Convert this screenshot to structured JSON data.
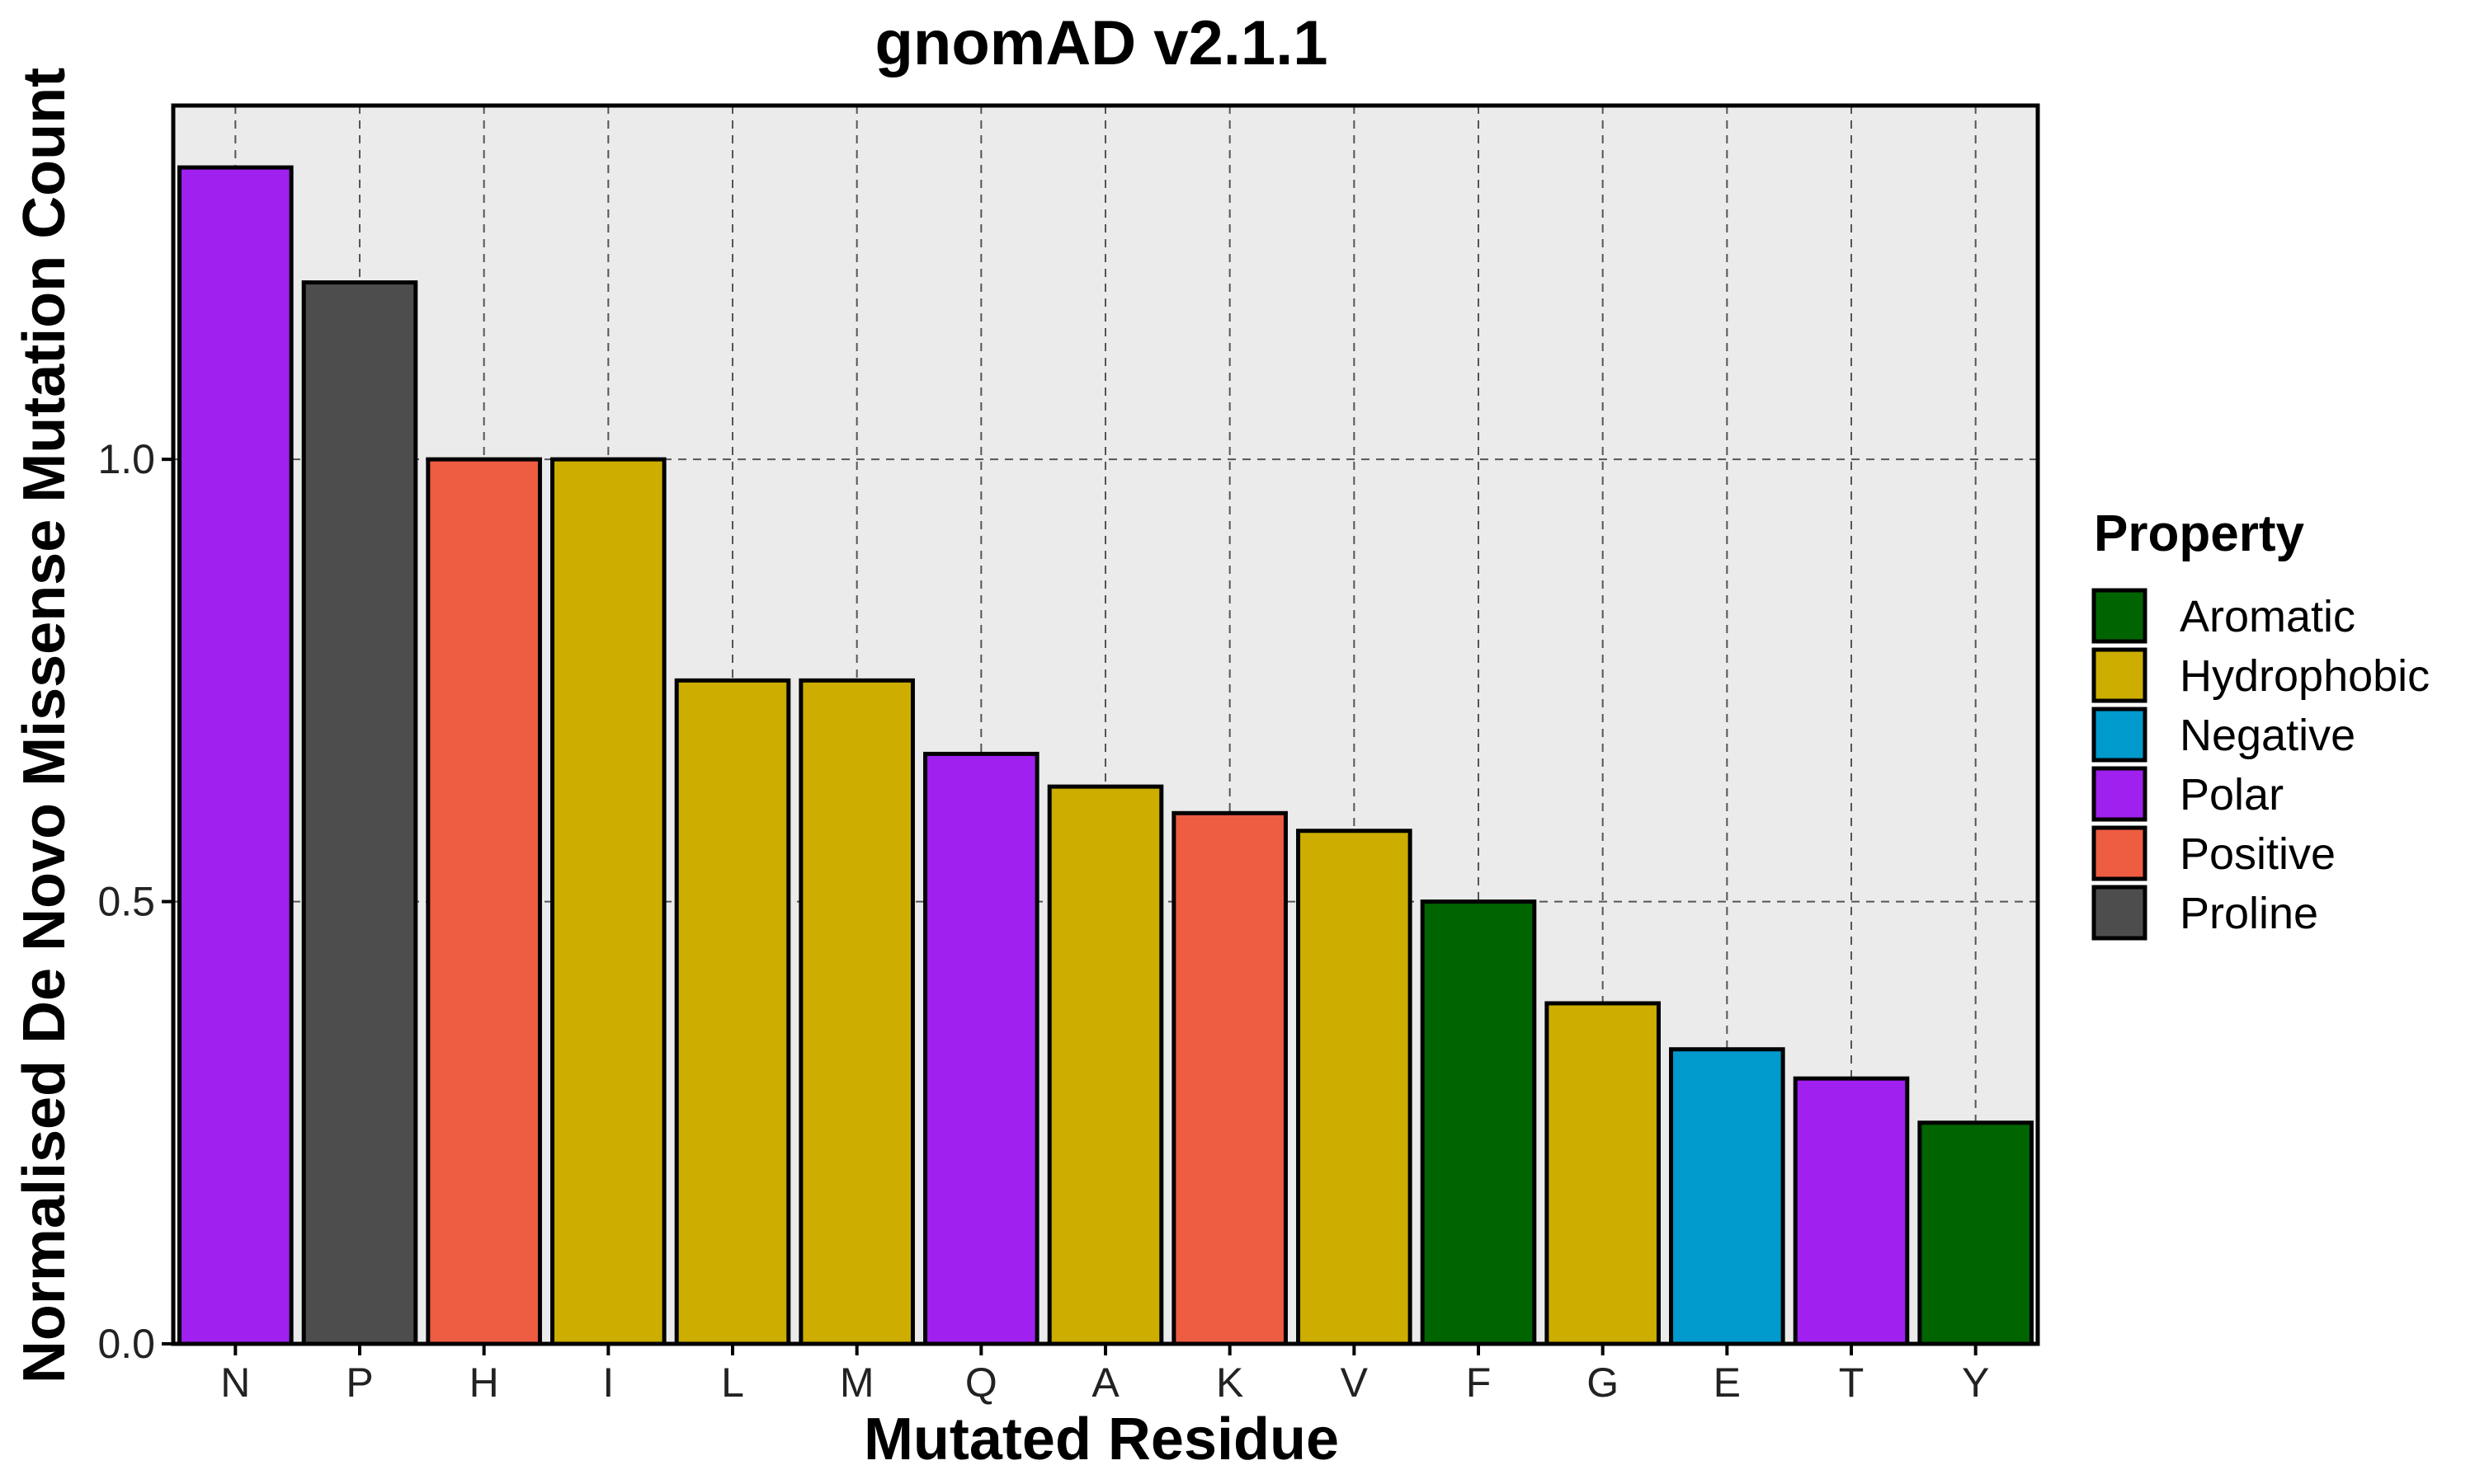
{
  "chart_data": {
    "type": "bar",
    "title": "gnomAD v2.1.1",
    "xlabel": "Mutated Residue",
    "ylabel": "Normalised De Novo Missense Mutation Count",
    "ylim": [
      0,
      1.4
    ],
    "yticks": [
      0.0,
      0.5,
      1.0
    ],
    "ytick_labels": [
      "0.0",
      "0.5",
      "1.0"
    ],
    "grid": true,
    "categories": [
      "N",
      "P",
      "H",
      "I",
      "L",
      "M",
      "Q",
      "A",
      "K",
      "V",
      "F",
      "G",
      "E",
      "T",
      "Y"
    ],
    "values": [
      1.33,
      1.2,
      1.0,
      1.0,
      0.75,
      0.75,
      0.667,
      0.63,
      0.6,
      0.58,
      0.5,
      0.385,
      0.333,
      0.3,
      0.25
    ],
    "property": [
      "Polar",
      "Proline",
      "Positive",
      "Hydrophobic",
      "Hydrophobic",
      "Hydrophobic",
      "Polar",
      "Hydrophobic",
      "Positive",
      "Hydrophobic",
      "Aromatic",
      "Hydrophobic",
      "Negative",
      "Polar",
      "Aromatic"
    ],
    "legend": {
      "title": "Property",
      "position": "right",
      "entries": [
        {
          "label": "Aromatic",
          "color": "#006400"
        },
        {
          "label": "Hydrophobic",
          "color": "#CCAD00"
        },
        {
          "label": "Negative",
          "color": "#009ACD"
        },
        {
          "label": "Polar",
          "color": "#A020F0"
        },
        {
          "label": "Positive",
          "color": "#EE5C42"
        },
        {
          "label": "Proline",
          "color": "#4D4D4D"
        }
      ]
    }
  }
}
